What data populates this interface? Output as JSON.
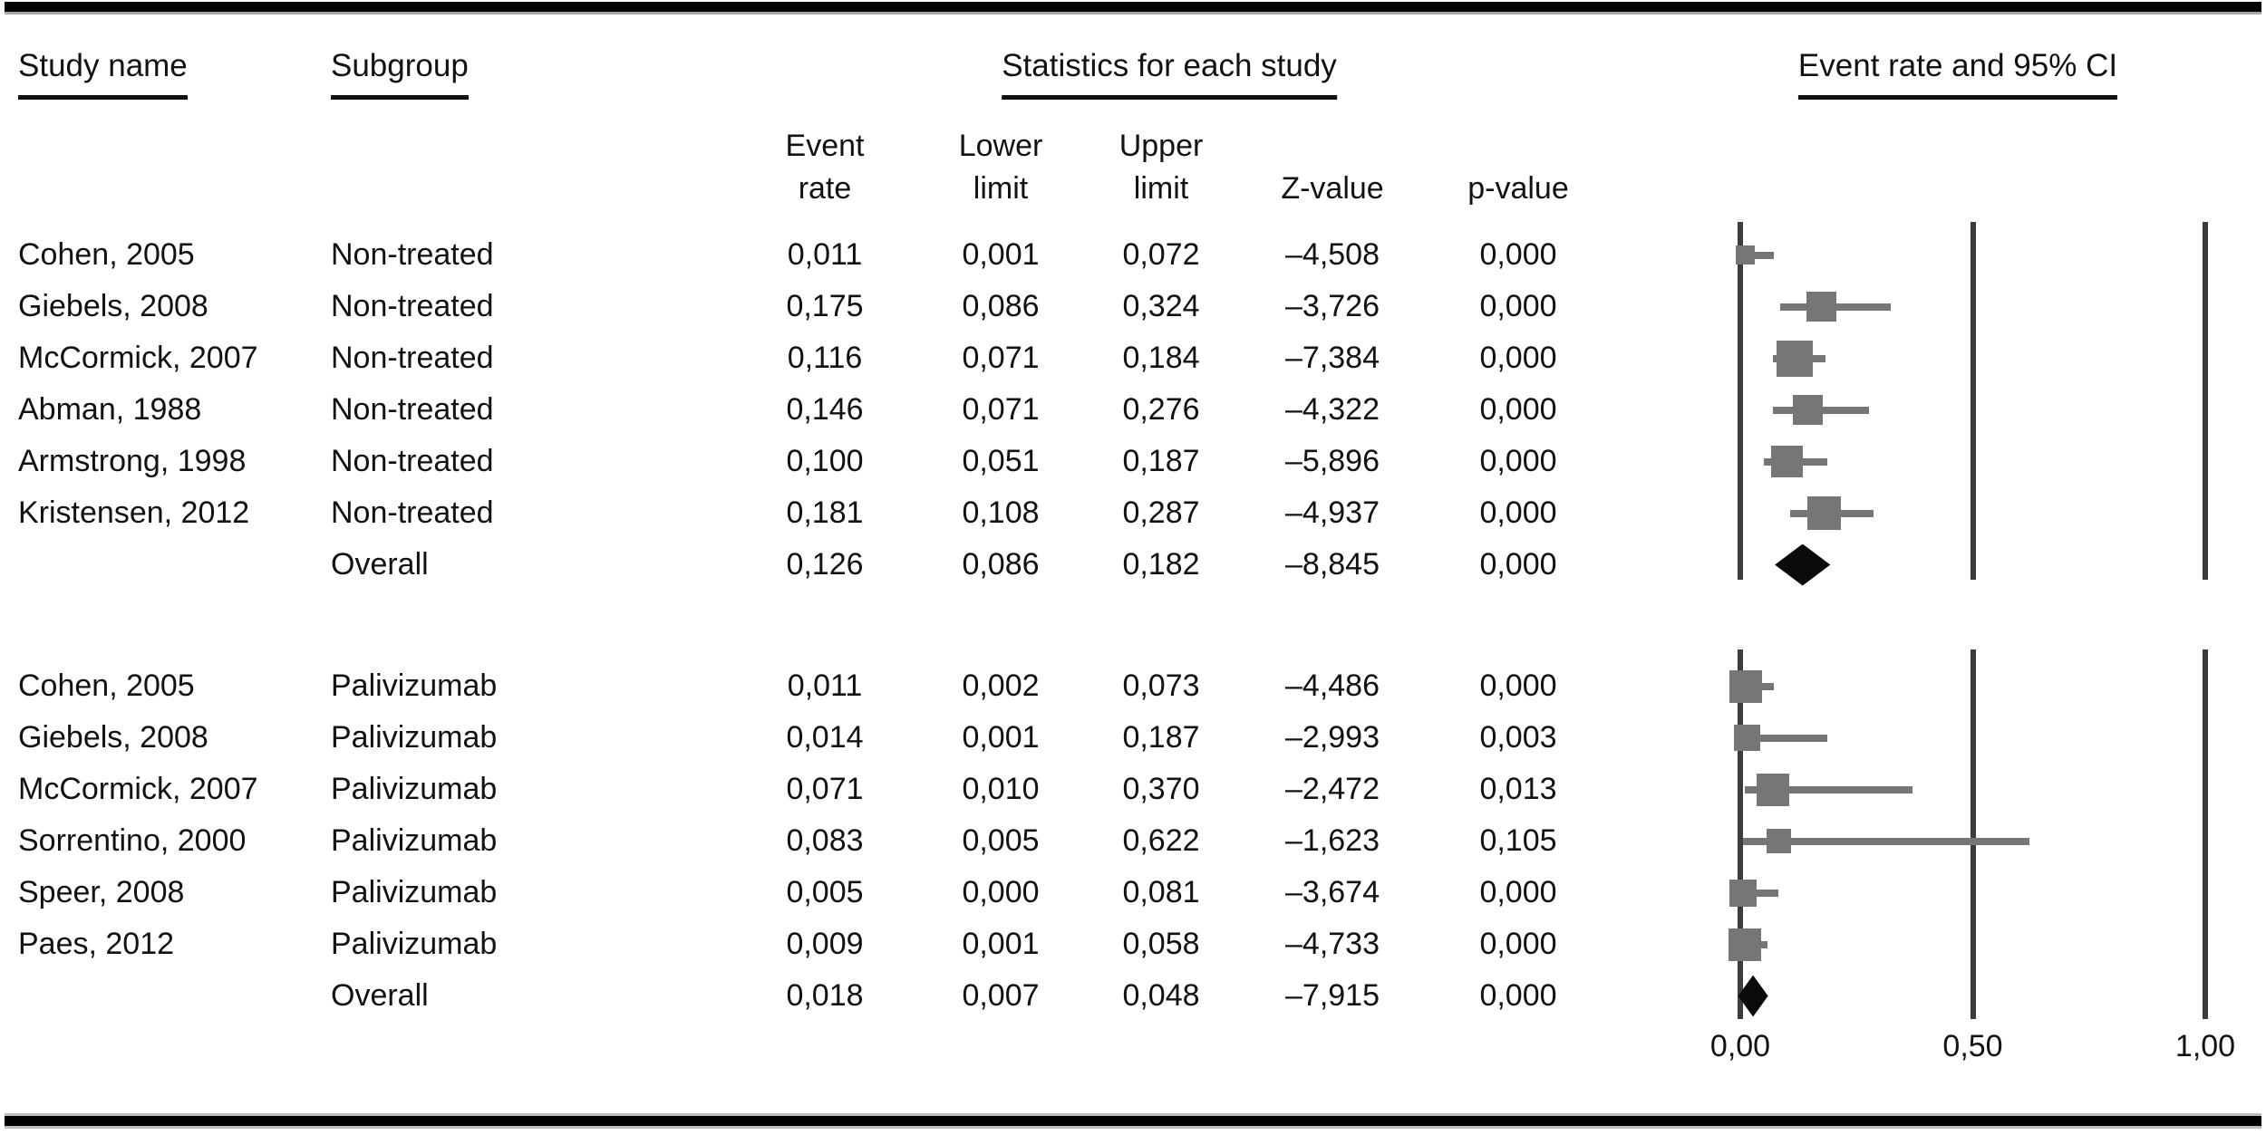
{
  "table": {
    "headers": {
      "study_name": "Study name",
      "subgroup": "Subgroup",
      "statistics": "Statistics for each study",
      "plot": "Event rate and 95% CI",
      "columns": [
        {
          "l1": "Event",
          "l2": "rate"
        },
        {
          "l1": "Lower",
          "l2": "limit"
        },
        {
          "l1": "Upper",
          "l2": "limit"
        },
        {
          "l1": "",
          "l2": "Z-value"
        },
        {
          "l1": "",
          "l2": "p-value"
        }
      ]
    }
  },
  "colors": {
    "marker_gray": "#767676",
    "axis_line_gray": "#3c3c3c",
    "diamond_black": "#0b0b0b",
    "text_black": "#121212"
  },
  "chart_data": {
    "type": "forest",
    "title": "Event rate and 95% CI",
    "x_axis": {
      "range": [
        0.0,
        1.0
      ],
      "ticks": [
        {
          "label": "0,00",
          "value": 0.0
        },
        {
          "label": "0,50",
          "value": 0.5
        },
        {
          "label": "1,00",
          "value": 1.0
        }
      ]
    },
    "groups": [
      {
        "name": "Non-treated",
        "rows": [
          {
            "study": "Cohen, 2005",
            "subgroup": "Non-treated",
            "event_rate": "0,011",
            "lower": "0,001",
            "upper": "0,072",
            "z": "–4,508",
            "p": "0,000",
            "rate_v": 0.011,
            "lower_v": 0.001,
            "upper_v": 0.072,
            "marker": "square",
            "size": 21
          },
          {
            "study": "Giebels, 2008",
            "subgroup": "Non-treated",
            "event_rate": "0,175",
            "lower": "0,086",
            "upper": "0,324",
            "z": "–3,726",
            "p": "0,000",
            "rate_v": 0.175,
            "lower_v": 0.086,
            "upper_v": 0.324,
            "marker": "square",
            "size": 33
          },
          {
            "study": "McCormick, 2007",
            "subgroup": "Non-treated",
            "event_rate": "0,116",
            "lower": "0,071",
            "upper": "0,184",
            "z": "–7,384",
            "p": "0,000",
            "rate_v": 0.116,
            "lower_v": 0.071,
            "upper_v": 0.184,
            "marker": "square",
            "size": 40
          },
          {
            "study": "Abman, 1988",
            "subgroup": "Non-treated",
            "event_rate": "0,146",
            "lower": "0,071",
            "upper": "0,276",
            "z": "–4,322",
            "p": "0,000",
            "rate_v": 0.146,
            "lower_v": 0.071,
            "upper_v": 0.276,
            "marker": "square",
            "size": 33
          },
          {
            "study": "Armstrong, 1998",
            "subgroup": "Non-treated",
            "event_rate": "0,100",
            "lower": "0,051",
            "upper": "0,187",
            "z": "–5,896",
            "p": "0,000",
            "rate_v": 0.1,
            "lower_v": 0.051,
            "upper_v": 0.187,
            "marker": "square",
            "size": 35
          },
          {
            "study": "Kristensen, 2012",
            "subgroup": "Non-treated",
            "event_rate": "0,181",
            "lower": "0,108",
            "upper": "0,287",
            "z": "–4,937",
            "p": "0,000",
            "rate_v": 0.181,
            "lower_v": 0.108,
            "upper_v": 0.287,
            "marker": "square",
            "size": 37
          },
          {
            "study": "",
            "subgroup": "Overall",
            "event_rate": "0,126",
            "lower": "0,086",
            "upper": "0,182",
            "z": "–8,845",
            "p": "0,000",
            "rate_v": 0.126,
            "lower_v": 0.086,
            "upper_v": 0.182,
            "marker": "diamond",
            "size": 46
          }
        ]
      },
      {
        "name": "Palivizumab",
        "rows": [
          {
            "study": "Cohen, 2005",
            "subgroup": "Palivizumab",
            "event_rate": "0,011",
            "lower": "0,002",
            "upper": "0,073",
            "z": "–4,486",
            "p": "0,000",
            "rate_v": 0.011,
            "lower_v": 0.002,
            "upper_v": 0.073,
            "marker": "square",
            "size": 36
          },
          {
            "study": "Giebels, 2008",
            "subgroup": "Palivizumab",
            "event_rate": "0,014",
            "lower": "0,001",
            "upper": "0,187",
            "z": "–2,993",
            "p": "0,003",
            "rate_v": 0.014,
            "lower_v": 0.001,
            "upper_v": 0.187,
            "marker": "square",
            "size": 29
          },
          {
            "study": "McCormick, 2007",
            "subgroup": "Palivizumab",
            "event_rate": "0,071",
            "lower": "0,010",
            "upper": "0,370",
            "z": "–2,472",
            "p": "0,013",
            "rate_v": 0.071,
            "lower_v": 0.01,
            "upper_v": 0.37,
            "marker": "square",
            "size": 36
          },
          {
            "study": "Sorrentino, 2000",
            "subgroup": "Palivizumab",
            "event_rate": "0,083",
            "lower": "0,005",
            "upper": "0,622",
            "z": "–1,623",
            "p": "0,105",
            "rate_v": 0.083,
            "lower_v": 0.005,
            "upper_v": 0.622,
            "marker": "square",
            "size": 27
          },
          {
            "study": "Speer, 2008",
            "subgroup": "Palivizumab",
            "event_rate": "0,005",
            "lower": "0,000",
            "upper": "0,081",
            "z": "–3,674",
            "p": "0,000",
            "rate_v": 0.005,
            "lower_v": 0.0,
            "upper_v": 0.081,
            "marker": "square",
            "size": 30
          },
          {
            "study": "Paes, 2012",
            "subgroup": "Palivizumab",
            "event_rate": "0,009",
            "lower": "0,001",
            "upper": "0,058",
            "z": "–4,733",
            "p": "0,000",
            "rate_v": 0.009,
            "lower_v": 0.001,
            "upper_v": 0.058,
            "marker": "square",
            "size": 36
          },
          {
            "study": "",
            "subgroup": "Overall",
            "event_rate": "0,018",
            "lower": "0,007",
            "upper": "0,048",
            "z": "–7,915",
            "p": "0,000",
            "rate_v": 0.018,
            "lower_v": 0.007,
            "upper_v": 0.048,
            "marker": "diamond",
            "size": 46
          }
        ]
      }
    ]
  }
}
